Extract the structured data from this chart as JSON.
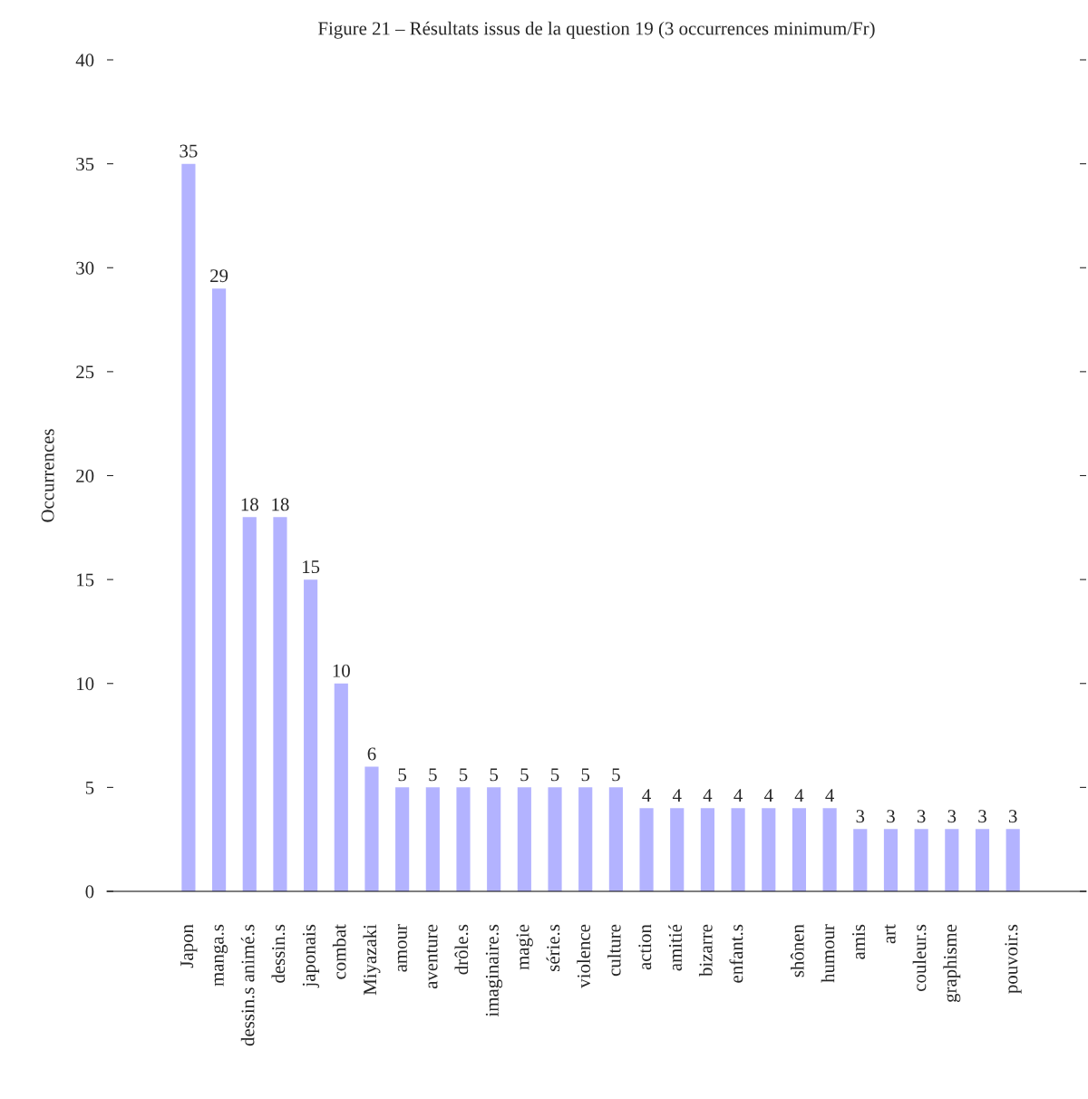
{
  "chart_data": {
    "type": "bar",
    "title": "Figure 21 – Résultats issus de la question 19 (3 occurrences minimum/Fr)",
    "ylabel": "Occurrences",
    "categories": [
      "Japon",
      "manga.s",
      "dessin.s animé.s",
      "dessin.s",
      "japonais",
      "combat",
      "Miyazaki",
      "amour",
      "aventure",
      "drôle.s",
      "imaginaire.s",
      "magie",
      "série.s",
      "violence",
      "culture",
      "action",
      "amitié",
      "bizarre",
      "enfant.s",
      null,
      "shônen",
      "humour",
      "amis",
      "art",
      "couleur.s",
      "graphisme",
      null,
      "pouvoir.s"
    ],
    "values": [
      35,
      29,
      18,
      18,
      15,
      10,
      6,
      5,
      5,
      5,
      5,
      5,
      5,
      5,
      5,
      4,
      4,
      4,
      4,
      4,
      4,
      4,
      3,
      3,
      3,
      3,
      3,
      3
    ],
    "color": "#b3b3ff",
    "ylim": [
      0,
      40
    ],
    "yticks": [
      0,
      5,
      10,
      15,
      20,
      25,
      30,
      35,
      40
    ],
    "data_labels": true,
    "grid": false,
    "legend": false
  }
}
